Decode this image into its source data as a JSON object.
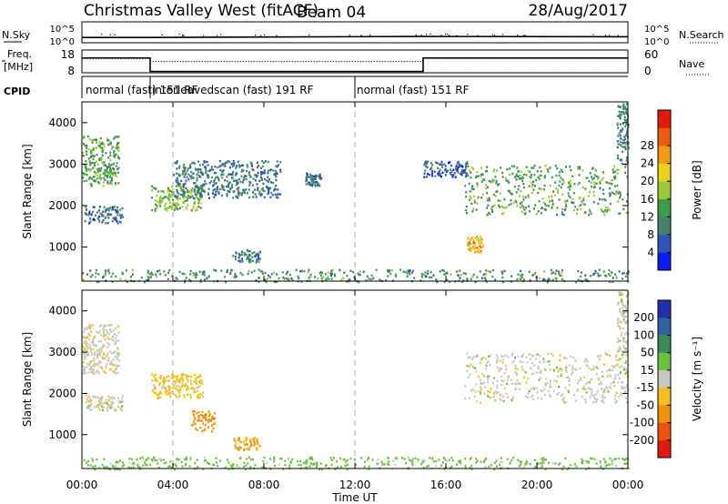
{
  "header": {
    "title": "Christmas Valley West (fitACF)",
    "beam": "Beam 04",
    "date": "28/Aug/2017"
  },
  "chart_data": [
    {
      "type": "line",
      "panel": "sky-search-noise",
      "left_label": "N.Sky",
      "right_label": "N.Search",
      "y_ticks_left": [
        "10^5",
        "10^0"
      ],
      "y_ticks_right": [
        "10^5",
        "10^0"
      ],
      "x": [
        0,
        3,
        15,
        24
      ],
      "series": [
        {
          "values": [
            1.0,
            1.0,
            1.3,
            1.2
          ]
        },
        {
          "values": [
            1.0,
            1.0,
            1.3,
            1.2
          ]
        }
      ]
    },
    {
      "type": "line",
      "panel": "frequency-nave",
      "left_label_line1": "Freq.",
      "left_label_line2": "[MHz]",
      "right_label": "Nave",
      "y_ticks_left": [
        "18",
        "8"
      ],
      "y_ticks_right": [
        "60",
        "0"
      ],
      "freq_x": [
        0,
        3,
        3,
        15,
        15,
        24
      ],
      "freq_y": [
        14.5,
        14.5,
        8.6,
        8.6,
        14.5,
        14.5
      ],
      "nave_x": [
        0,
        3,
        3,
        15,
        15,
        24
      ],
      "nave_y": [
        38,
        38,
        30,
        30,
        38,
        38
      ],
      "ylim": [
        8,
        18
      ]
    },
    {
      "type": "table",
      "panel": "cpid",
      "label": "CPID",
      "segments": [
        {
          "start": 0,
          "end": 3,
          "text": "normal (fast)  151 RF"
        },
        {
          "start": 3,
          "end": 12,
          "text": "interleavedscan (fast) 191 RF"
        },
        {
          "start": 12,
          "end": 24,
          "text": "normal (fast)  151 RF"
        }
      ]
    },
    {
      "type": "heatmap",
      "panel": "power",
      "ylabel": "Slant Range [km]",
      "colorbar_label": "Power [dB]",
      "colorbar_ticks": [
        4,
        8,
        12,
        16,
        20,
        24,
        28
      ],
      "colorbar_colors": [
        "#0a1cf0",
        "#2e55b8",
        "#4a7f6a",
        "#3c9c4a",
        "#9dc83a",
        "#e9d21e",
        "#f39a12",
        "#ee5a0e",
        "#e21a0c"
      ],
      "ylim": [
        180,
        4500
      ],
      "y_ticks": [
        1000,
        2000,
        3000,
        4000
      ],
      "echo_regions": [
        {
          "t0": 0.0,
          "t1": 1.6,
          "r0": 2500,
          "r1": 3700,
          "level": 14
        },
        {
          "t0": 0.1,
          "t1": 1.8,
          "r0": 1600,
          "r1": 2000,
          "level": 8
        },
        {
          "t0": 3.0,
          "t1": 5.3,
          "r0": 1900,
          "r1": 2500,
          "level": 16
        },
        {
          "t0": 4.0,
          "t1": 8.7,
          "r0": 2200,
          "r1": 3100,
          "level": 9
        },
        {
          "t0": 6.6,
          "t1": 7.8,
          "r0": 650,
          "r1": 950,
          "level": 9
        },
        {
          "t0": 9.8,
          "t1": 10.5,
          "r0": 2500,
          "r1": 2800,
          "level": 8
        },
        {
          "t0": 15.0,
          "t1": 17.0,
          "r0": 2700,
          "r1": 3100,
          "level": 7
        },
        {
          "t0": 16.8,
          "t1": 24.0,
          "r0": 1800,
          "r1": 3000,
          "level": 14
        },
        {
          "t0": 16.9,
          "t1": 17.6,
          "r0": 900,
          "r1": 1300,
          "level": 24
        },
        {
          "t0": 23.5,
          "t1": 24.0,
          "r0": 3000,
          "r1": 4500,
          "level": 10
        },
        {
          "t0": 0.0,
          "t1": 24.0,
          "r0": 180,
          "r1": 480,
          "level": 12
        }
      ]
    },
    {
      "type": "heatmap",
      "panel": "velocity",
      "ylabel": "Slant Range [km]",
      "colorbar_label": "Velocity [m s⁻¹]",
      "colorbar_ticks": [
        200,
        100,
        50,
        15,
        -15,
        -50,
        -100,
        -200
      ],
      "colorbar_colors": [
        "#2230b0",
        "#2f62a0",
        "#3a8a5a",
        "#6cc040",
        "#c8c8c0",
        "#f2c020",
        "#f29010",
        "#ee5010",
        "#e01a10"
      ],
      "ylim": [
        180,
        4500
      ],
      "y_ticks": [
        1000,
        2000,
        3000,
        4000
      ],
      "echo_regions": [
        {
          "t0": 0.0,
          "t1": 1.6,
          "r0": 2500,
          "r1": 3700,
          "level": -5
        },
        {
          "t0": 0.1,
          "t1": 1.8,
          "r0": 1600,
          "r1": 2000,
          "level": 0
        },
        {
          "t0": 3.0,
          "t1": 5.3,
          "r0": 1900,
          "r1": 2500,
          "level": -30
        },
        {
          "t0": 4.8,
          "t1": 5.8,
          "r0": 1100,
          "r1": 1600,
          "level": -70
        },
        {
          "t0": 6.6,
          "t1": 7.8,
          "r0": 650,
          "r1": 950,
          "level": -60
        },
        {
          "t0": 16.8,
          "t1": 24.0,
          "r0": 1800,
          "r1": 3000,
          "level": 0
        },
        {
          "t0": 23.5,
          "t1": 24.0,
          "r0": 3000,
          "r1": 4500,
          "level": 0
        },
        {
          "t0": 0.0,
          "t1": 24.0,
          "r0": 180,
          "r1": 480,
          "level": 30
        }
      ]
    }
  ],
  "x_axis": {
    "xlabel": "Time UT",
    "tick_labels": [
      "00:00",
      "04:00",
      "08:00",
      "12:00",
      "16:00",
      "20:00",
      "00:00"
    ],
    "tick_hours": [
      0,
      4,
      8,
      12,
      16,
      20,
      24
    ],
    "dashed_hours": [
      4,
      12
    ]
  }
}
